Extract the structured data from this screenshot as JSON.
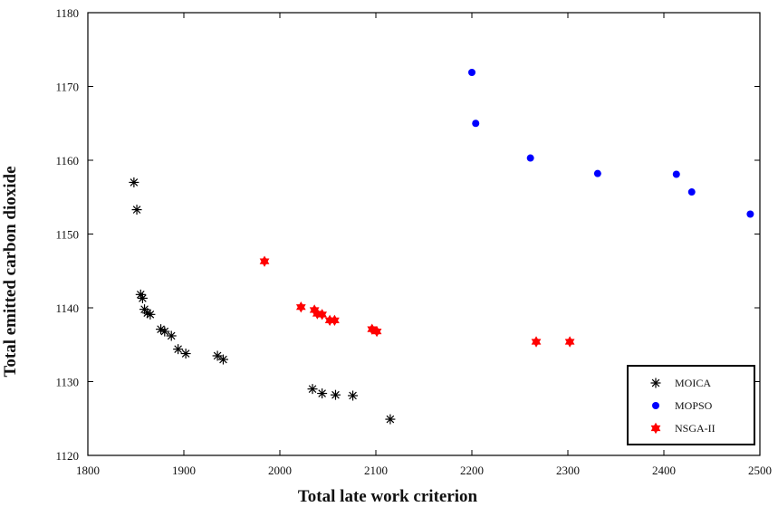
{
  "chart_data": {
    "type": "scatter",
    "xlabel": "Total late work criterion",
    "ylabel": "Total emitted carbon dioxide",
    "xlim": [
      1800,
      2500
    ],
    "ylim": [
      1120,
      1180
    ],
    "xticks": [
      1800,
      1900,
      2000,
      2100,
      2200,
      2300,
      2400,
      2500
    ],
    "yticks": [
      1120,
      1130,
      1140,
      1150,
      1160,
      1170,
      1180
    ],
    "grid": false,
    "legend_position": "bottom-right",
    "series": [
      {
        "name": "MOICA",
        "marker": "asterisk",
        "color": "#000000",
        "points": [
          [
            1848,
            1157
          ],
          [
            1851,
            1153.3
          ],
          [
            1855,
            1141.8
          ],
          [
            1857,
            1141.3
          ],
          [
            1859,
            1139.8
          ],
          [
            1862,
            1139.3
          ],
          [
            1865,
            1139.1
          ],
          [
            1876,
            1137.1
          ],
          [
            1880,
            1136.8
          ],
          [
            1887,
            1136.2
          ],
          [
            1894,
            1134.4
          ],
          [
            1902,
            1133.8
          ],
          [
            1935,
            1133.5
          ],
          [
            1941,
            1133
          ],
          [
            2034,
            1129
          ],
          [
            2044,
            1128.4
          ],
          [
            2058,
            1128.2
          ],
          [
            2076,
            1128.1
          ],
          [
            2115,
            1124.9
          ]
        ]
      },
      {
        "name": "MOPSO",
        "marker": "circle",
        "color": "#0000ff",
        "points": [
          [
            2200,
            1171.9
          ],
          [
            2204,
            1165
          ],
          [
            2261,
            1160.3
          ],
          [
            2331,
            1158.2
          ],
          [
            2413,
            1158.1
          ],
          [
            2429,
            1155.7
          ],
          [
            2490,
            1152.7
          ]
        ]
      },
      {
        "name": "NSGA-II",
        "marker": "star",
        "color": "#ff0000",
        "points": [
          [
            1984,
            1146.3
          ],
          [
            2022,
            1140.1
          ],
          [
            2036,
            1139.7
          ],
          [
            2039,
            1139.2
          ],
          [
            2044,
            1139.1
          ],
          [
            2052,
            1138.3
          ],
          [
            2057,
            1138.3
          ],
          [
            2096,
            1137.1
          ],
          [
            2101,
            1136.8
          ],
          [
            2267,
            1135.4
          ],
          [
            2302,
            1135.4
          ]
        ]
      }
    ]
  }
}
